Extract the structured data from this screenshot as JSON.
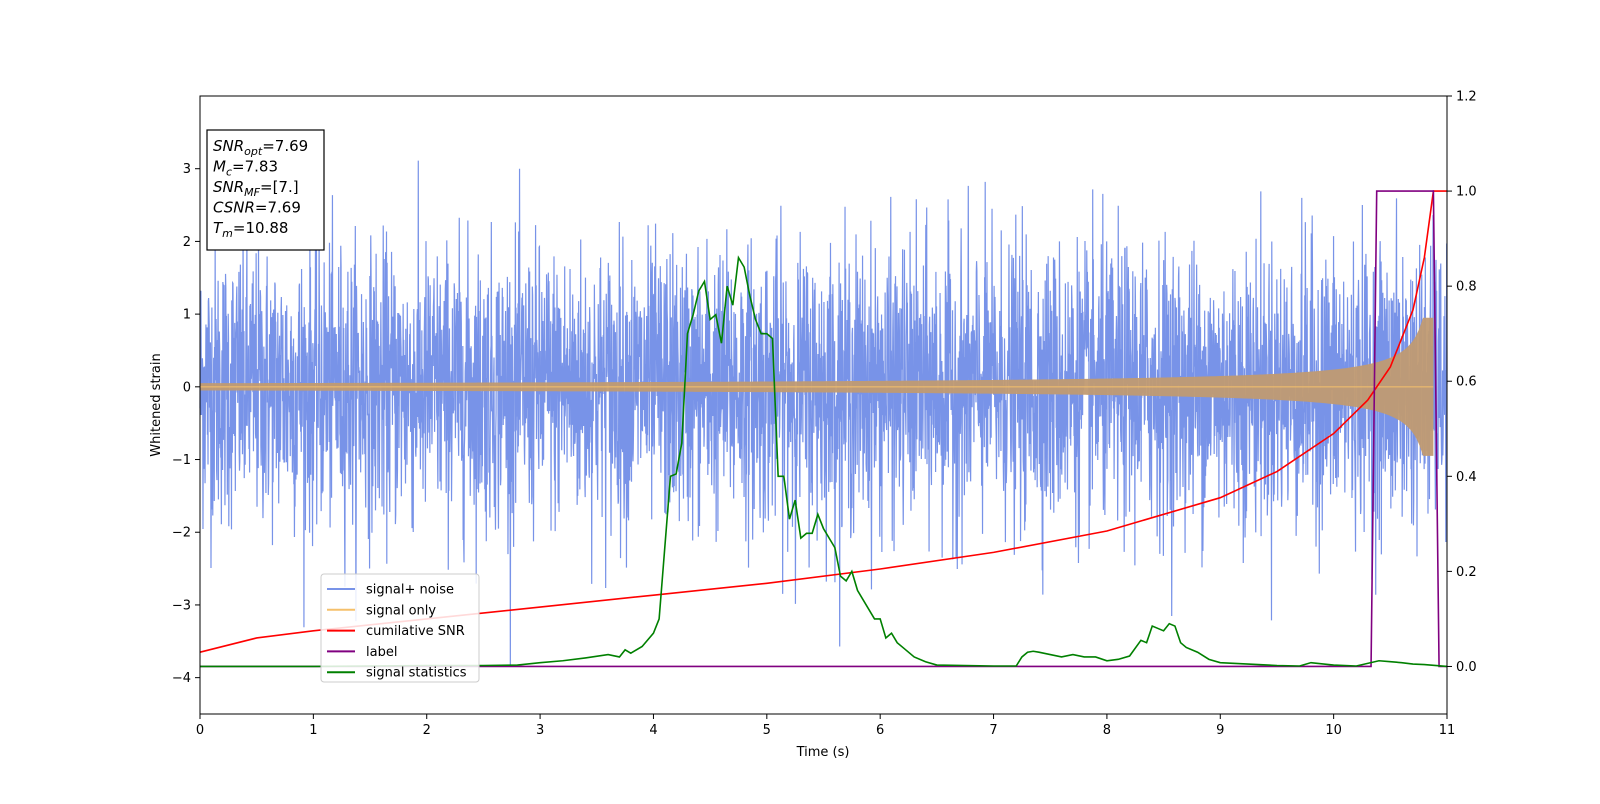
{
  "chart_data": {
    "type": "line",
    "xlabel": "Time (s)",
    "ylabel": "Whitened strain",
    "ylabel_right": "",
    "xlim": [
      0,
      11
    ],
    "ylim_left": [
      -4.5,
      4.0
    ],
    "ylim_right": [
      -0.1,
      1.2
    ],
    "x_ticks": [
      0,
      1,
      2,
      3,
      4,
      5,
      6,
      7,
      8,
      9,
      10,
      11
    ],
    "y_ticks_left": [
      -4,
      -3,
      -2,
      -1,
      0,
      1,
      2,
      3
    ],
    "y_ticks_right": [
      "0.0",
      "0.2",
      "0.4",
      "0.6",
      "0.8",
      "1.0",
      "1.2"
    ],
    "y_ticks_right_values": [
      0.0,
      0.2,
      0.4,
      0.6,
      0.8,
      1.0,
      1.2
    ],
    "grid": false,
    "legend_position": "lower-left",
    "annotation": {
      "lines": [
        {
          "base": "SNR",
          "sub": "opt",
          "value": "=7.69"
        },
        {
          "base": "M",
          "sub": "c",
          "value": "=7.83"
        },
        {
          "base": "SNR",
          "sub": "MF",
          "value": "=[7.]"
        },
        {
          "base": "CSNR",
          "sub": "",
          "value": "=7.69"
        },
        {
          "base": "T",
          "sub": "m",
          "value": "=10.88"
        }
      ]
    },
    "series": [
      {
        "name": "signal+ noise",
        "color": "#7893e8",
        "axis": "left",
        "kind": "noise",
        "envelope_typical": 1.3,
        "envelope_max": 3.2,
        "envelope_min": -4.15
      },
      {
        "name": "signal only",
        "color": "#f5c06b",
        "axis": "left",
        "kind": "chirp",
        "amplitude_start": 0.05,
        "amplitude_end": 0.95,
        "merger_time": 10.88
      },
      {
        "name": "cumilative SNR",
        "color": "#ff0000",
        "axis": "right",
        "x": [
          0,
          0.5,
          1,
          2,
          3,
          4,
          5,
          6,
          7,
          8,
          9,
          9.5,
          10,
          10.3,
          10.5,
          10.7,
          10.8,
          10.88,
          11
        ],
        "y": [
          0.03,
          0.06,
          0.075,
          0.1,
          0.125,
          0.15,
          0.175,
          0.205,
          0.24,
          0.285,
          0.355,
          0.41,
          0.49,
          0.56,
          0.63,
          0.75,
          0.86,
          1.0,
          1.0
        ]
      },
      {
        "name": "label",
        "color": "#800080",
        "axis": "right",
        "x": [
          0,
          10.33,
          10.38,
          10.88,
          10.93,
          11
        ],
        "y": [
          0,
          0,
          1,
          1,
          0,
          0
        ]
      },
      {
        "name": "signal statistics",
        "color": "#008000",
        "axis": "right",
        "x": [
          0,
          1,
          2,
          2.5,
          2.8,
          3.0,
          3.2,
          3.4,
          3.6,
          3.7,
          3.75,
          3.8,
          3.9,
          4.0,
          4.05,
          4.1,
          4.15,
          4.2,
          4.25,
          4.3,
          4.35,
          4.4,
          4.45,
          4.5,
          4.55,
          4.6,
          4.65,
          4.7,
          4.75,
          4.8,
          4.85,
          4.9,
          4.95,
          5.0,
          5.05,
          5.1,
          5.15,
          5.2,
          5.25,
          5.3,
          5.35,
          5.4,
          5.45,
          5.5,
          5.55,
          5.6,
          5.65,
          5.7,
          5.75,
          5.8,
          5.9,
          5.95,
          6.0,
          6.05,
          6.1,
          6.15,
          6.2,
          6.3,
          6.4,
          6.5,
          7.0,
          7.2,
          7.25,
          7.3,
          7.35,
          7.4,
          7.5,
          7.6,
          7.7,
          7.8,
          7.9,
          8.0,
          8.1,
          8.2,
          8.3,
          8.35,
          8.4,
          8.45,
          8.5,
          8.55,
          8.6,
          8.65,
          8.7,
          8.8,
          8.9,
          9.0,
          9.5,
          9.7,
          9.8,
          10.0,
          10.2,
          10.4,
          10.5,
          10.6,
          10.7,
          10.8,
          11.0
        ],
        "y": [
          0.0,
          0.0,
          0.002,
          0.002,
          0.003,
          0.008,
          0.012,
          0.018,
          0.025,
          0.02,
          0.035,
          0.028,
          0.042,
          0.07,
          0.1,
          0.25,
          0.4,
          0.405,
          0.47,
          0.7,
          0.74,
          0.79,
          0.81,
          0.73,
          0.74,
          0.68,
          0.8,
          0.76,
          0.86,
          0.84,
          0.78,
          0.73,
          0.7,
          0.7,
          0.69,
          0.4,
          0.4,
          0.31,
          0.35,
          0.27,
          0.28,
          0.28,
          0.32,
          0.29,
          0.27,
          0.25,
          0.19,
          0.18,
          0.2,
          0.16,
          0.12,
          0.1,
          0.1,
          0.06,
          0.07,
          0.05,
          0.04,
          0.02,
          0.01,
          0.003,
          0.001,
          0.001,
          0.02,
          0.03,
          0.032,
          0.03,
          0.025,
          0.02,
          0.025,
          0.02,
          0.02,
          0.012,
          0.015,
          0.022,
          0.055,
          0.05,
          0.085,
          0.08,
          0.075,
          0.09,
          0.085,
          0.05,
          0.04,
          0.03,
          0.015,
          0.008,
          0.002,
          0.001,
          0.008,
          0.003,
          0.001,
          0.012,
          0.01,
          0.008,
          0.005,
          0.004,
          0.0
        ]
      }
    ]
  }
}
